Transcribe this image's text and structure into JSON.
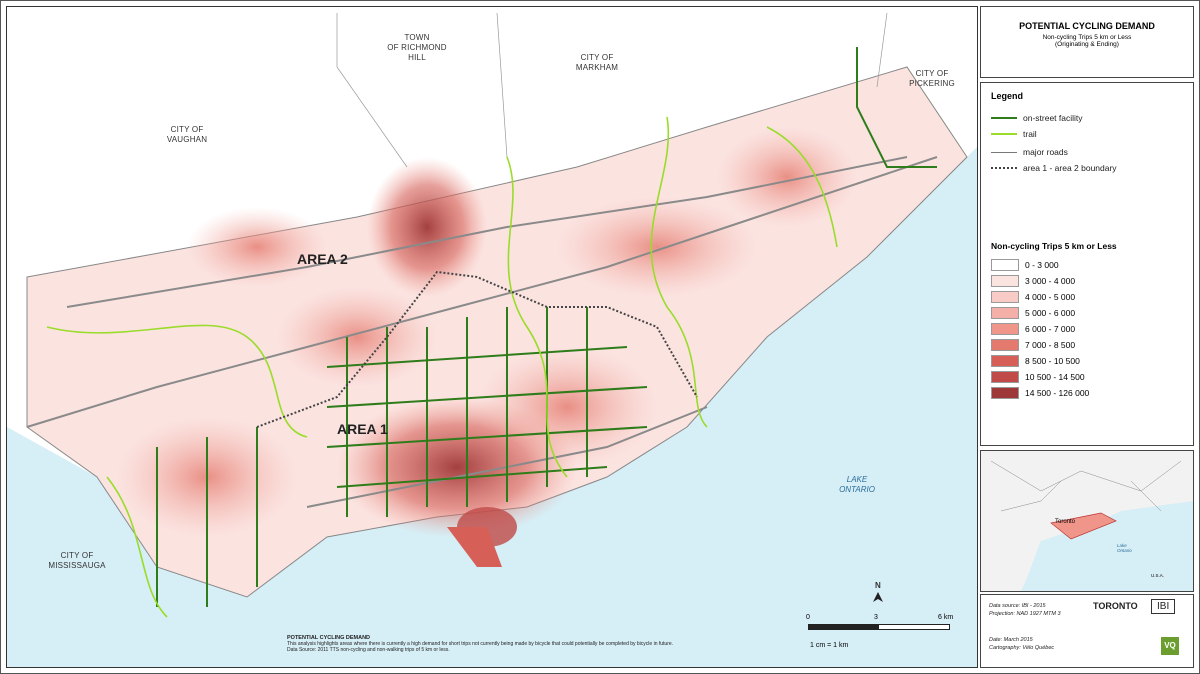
{
  "map": {
    "place_labels": [
      {
        "id": "vaughan",
        "text": "CITY OF\nVAUGHAN"
      },
      {
        "id": "richmond",
        "text": "TOWN\nOF RICHMOND\nHILL"
      },
      {
        "id": "markham",
        "text": "CITY OF\nMARKHAM"
      },
      {
        "id": "pickering",
        "text": "CITY OF\nPICKERING"
      },
      {
        "id": "mississauga",
        "text": "CITY OF\nMISSISSAUGA"
      }
    ],
    "area_labels": {
      "area2": "AREA 2",
      "area1": "AREA 1"
    },
    "lake_label": "LAKE\nONTARIO",
    "north_label": "N",
    "scale": {
      "ticks": [
        "0",
        "3",
        "6 km"
      ],
      "ratio": "1 cm = 1 km"
    },
    "note": {
      "title": "POTENTIAL CYCLING DEMAND",
      "line1": "This analysis highlights areas where there is currently a high demand for short trips not currently being made by bicycle that could potentially be completed by bicycle in future.",
      "line2": "Data Source: 2011 TTS non-cycling and non-walking trips of 5 km or less."
    }
  },
  "title_box": {
    "title": "POTENTIAL CYCLING DEMAND",
    "subtitle": "Non-cycling Trips 5 km or Less",
    "sub2": "(Originating & Ending)"
  },
  "legend": {
    "heading": "Legend",
    "items": [
      {
        "label": "on-street facility",
        "color": "#2e7d1a",
        "style": "solid"
      },
      {
        "label": "trail",
        "color": "#9adc2a",
        "style": "solid"
      },
      {
        "label": "major roads",
        "color": "#777777",
        "style": "thin"
      },
      {
        "label": "area 1 - area 2 boundary",
        "color": "#444444",
        "style": "dotted"
      }
    ],
    "class_title": "Non-cycling Trips 5  km or Less",
    "classes": [
      {
        "label": "0 - 3 000",
        "color": "#ffffff"
      },
      {
        "label": "3 000 - 4 000",
        "color": "#fbe3e0"
      },
      {
        "label": "4 000 - 5 000",
        "color": "#f8cbc6"
      },
      {
        "label": "5 000 - 6 000",
        "color": "#f4b0a8"
      },
      {
        "label": "6 000 - 7 000",
        "color": "#ef9589"
      },
      {
        "label": "7 000 - 8 500",
        "color": "#e47a6e"
      },
      {
        "label": "8 500 - 10 500",
        "color": "#d66058"
      },
      {
        "label": "10 500 - 14 500",
        "color": "#bf4a47"
      },
      {
        "label": "14 500 - 126 000",
        "color": "#9e3838"
      }
    ]
  },
  "inset": {
    "city_label": "Toronto",
    "lake_label": "Lake\nOntario",
    "country_label": "U.S.A."
  },
  "credits": {
    "source": "Data source: IBI - 2015",
    "projection": "Projection: NAD 1927 MTM 3",
    "date": "Date: March 2015",
    "carto": "Cartography: Vélo Québec",
    "toronto": "TORONTO",
    "ibi": "IBI",
    "vq": "VQ"
  }
}
